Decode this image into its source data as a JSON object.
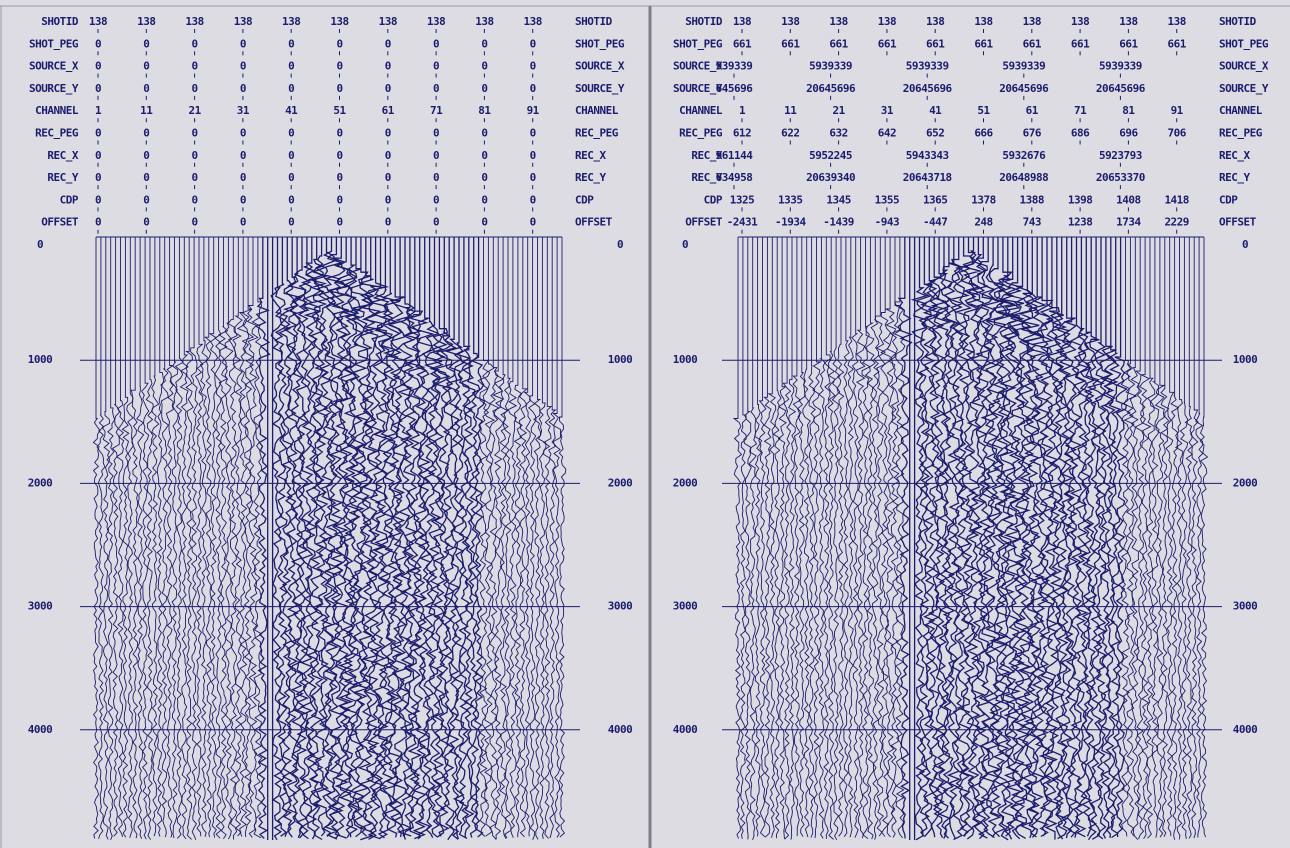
{
  "panels": [
    {
      "headers": [
        {
          "label": "SHOTID",
          "values": [
            138,
            138,
            138,
            138,
            138,
            138,
            138,
            138,
            138,
            138
          ]
        },
        {
          "label": "SHOT_PEG",
          "values": [
            0,
            0,
            0,
            0,
            0,
            0,
            0,
            0,
            0,
            0
          ]
        },
        {
          "label": "SOURCE_X",
          "values": [
            0,
            0,
            0,
            0,
            0,
            0,
            0,
            0,
            0,
            0
          ]
        },
        {
          "label": "SOURCE_Y",
          "values": [
            0,
            0,
            0,
            0,
            0,
            0,
            0,
            0,
            0,
            0
          ]
        },
        {
          "label": "CHANNEL",
          "values": [
            1,
            11,
            21,
            31,
            41,
            51,
            61,
            71,
            81,
            91
          ]
        },
        {
          "label": "REC_PEG",
          "values": [
            0,
            0,
            0,
            0,
            0,
            0,
            0,
            0,
            0,
            0
          ]
        },
        {
          "label": "REC_X",
          "values": [
            0,
            0,
            0,
            0,
            0,
            0,
            0,
            0,
            0,
            0
          ]
        },
        {
          "label": "REC_Y",
          "values": [
            0,
            0,
            0,
            0,
            0,
            0,
            0,
            0,
            0,
            0
          ]
        },
        {
          "label": "CDP",
          "values": [
            0,
            0,
            0,
            0,
            0,
            0,
            0,
            0,
            0,
            0
          ]
        },
        {
          "label": "OFFSET",
          "values": [
            0,
            0,
            0,
            0,
            0,
            0,
            0,
            0,
            0,
            0
          ]
        }
      ],
      "time_labels": [
        0,
        1000,
        2000,
        3000,
        4000
      ]
    },
    {
      "headers": [
        {
          "label": "SHOTID",
          "values": [
            138,
            138,
            138,
            138,
            138,
            138,
            138,
            138,
            138,
            138
          ]
        },
        {
          "label": "SHOT_PEG",
          "values": [
            661,
            661,
            661,
            661,
            661,
            661,
            661,
            661,
            661,
            661
          ]
        },
        {
          "label": "SOURCE_X",
          "values": [
            939339,
            5939339,
            5939339,
            5939339,
            5939339
          ]
        },
        {
          "label": "SOURCE_Y",
          "values": [
            645696,
            20645696,
            20645696,
            20645696,
            20645696
          ]
        },
        {
          "label": "CHANNEL",
          "values": [
            1,
            11,
            21,
            31,
            41,
            51,
            61,
            71,
            81,
            91
          ]
        },
        {
          "label": "REC_PEG",
          "values": [
            612,
            622,
            632,
            642,
            652,
            666,
            676,
            686,
            696,
            706
          ]
        },
        {
          "label": "REC_X",
          "values": [
            961144,
            5952245,
            5943343,
            5932676,
            5923793
          ]
        },
        {
          "label": "REC_Y",
          "values": [
            634958,
            20639340,
            20643718,
            20648988,
            20653370
          ]
        },
        {
          "label": "CDP",
          "values": [
            1325,
            1335,
            1345,
            1355,
            1365,
            1378,
            1388,
            1398,
            1408,
            1418
          ]
        },
        {
          "label": "OFFSET",
          "values": [
            -2431,
            -1934,
            -1439,
            -943,
            -447,
            248,
            743,
            1238,
            1734,
            2229
          ]
        }
      ],
      "time_labels": [
        0,
        1000,
        2000,
        3000,
        4000
      ]
    }
  ]
}
